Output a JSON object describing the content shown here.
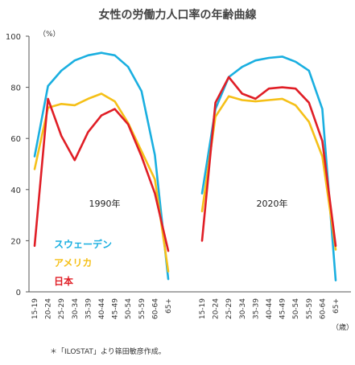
{
  "chart_data": {
    "type": "line",
    "title": "女性の労働力人口率の年齢曲線",
    "ylabel": "（%）",
    "xunit": "（歳）",
    "ylim": [
      0,
      100
    ],
    "yticks": [
      0,
      20,
      40,
      60,
      80,
      100
    ],
    "grid": false,
    "legend_position": "bottom-left",
    "categories": [
      "15-19",
      "20-24",
      "25-29",
      "30-34",
      "35-39",
      "40-44",
      "45-49",
      "50-54",
      "55-59",
      "60-64",
      "65+"
    ],
    "panels": [
      {
        "label": "1990年",
        "series": [
          {
            "name": "スウェーデン",
            "color": "#1AAFE0",
            "values": [
              53,
              80.5,
              86.5,
              90.5,
              92.5,
              93.5,
              92.5,
              88,
              78.5,
              53.5,
              5
            ]
          },
          {
            "name": "アメリカ",
            "color": "#F5C018",
            "values": [
              48,
              72,
              73.5,
              73,
              75.5,
              77.5,
              74.5,
              66,
              55,
              44,
              8
            ]
          },
          {
            "name": "日本",
            "color": "#E01E26",
            "values": [
              18,
              75.5,
              61,
              51.5,
              62.5,
              69,
              71.5,
              65.5,
              53,
              38.5,
              16
            ]
          }
        ]
      },
      {
        "label": "2020年",
        "series": [
          {
            "name": "スウェーデン",
            "color": "#1AAFE0",
            "values": [
              38.5,
              71.5,
              84,
              88,
              90.5,
              91.5,
              92,
              90,
              86.5,
              71.5,
              4.5
            ]
          },
          {
            "name": "アメリカ",
            "color": "#F5C018",
            "values": [
              31.5,
              68.5,
              76.5,
              75,
              74.5,
              75,
              75.5,
              73,
              66.5,
              53,
              16.5
            ]
          },
          {
            "name": "日本",
            "color": "#E01E26",
            "values": [
              20,
              74,
              84,
              77.5,
              75.5,
              79.5,
              80,
              79.5,
              74,
              59,
              18
            ]
          }
        ]
      }
    ]
  },
  "legend": [
    {
      "name": "スウェーデン",
      "color": "#1AAFE0"
    },
    {
      "name": "アメリカ",
      "color": "#F5C018"
    },
    {
      "name": "日本",
      "color": "#E01E26"
    }
  ],
  "footnote": "＊「ILOSTAT」より篠田敏彦作成。"
}
